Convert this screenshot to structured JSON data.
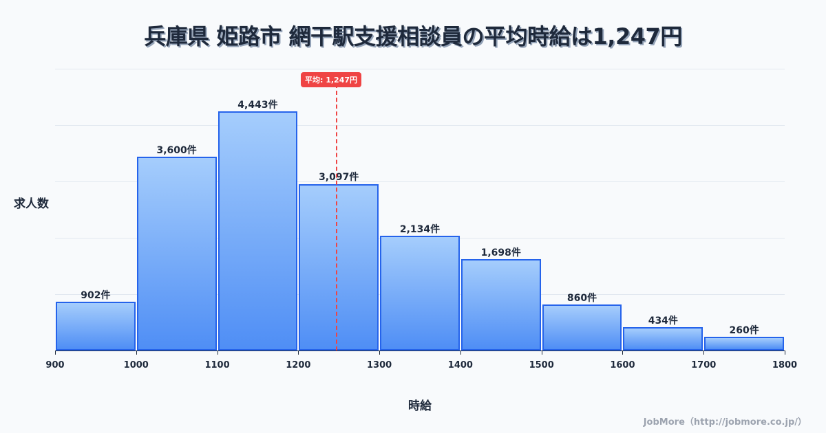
{
  "title": "兵庫県 姫路市 網干駅支援相談員の平均時給は1,247円",
  "mean_badge": "平均: 1,247円",
  "ylabel": "求人数",
  "xlabel": "時給",
  "credit": "JobMore（http://jobmore.co.jp/）",
  "colors": {
    "bar_border": "#2563eb",
    "bar_top": "#a5cdfc",
    "bar_bottom": "#4f8ef5",
    "mean_line": "#ef4444",
    "text": "#1e293b"
  },
  "chart_data": {
    "type": "bar",
    "title": "兵庫県 姫路市 網干駅支援相談員の平均時給は1,247円",
    "xlabel": "時給",
    "ylabel": "求人数",
    "bins": [
      [
        900,
        1000
      ],
      [
        1000,
        1100
      ],
      [
        1100,
        1200
      ],
      [
        1200,
        1300
      ],
      [
        1300,
        1400
      ],
      [
        1400,
        1500
      ],
      [
        1500,
        1600
      ],
      [
        1600,
        1700
      ],
      [
        1700,
        1800
      ]
    ],
    "categories": [
      "900-1000",
      "1000-1100",
      "1100-1200",
      "1200-1300",
      "1300-1400",
      "1400-1500",
      "1500-1600",
      "1600-1700",
      "1700-1800"
    ],
    "values": [
      902,
      3600,
      4443,
      3097,
      2134,
      1698,
      860,
      434,
      260
    ],
    "value_labels": [
      "902件",
      "3,600件",
      "4,443件",
      "3,097件",
      "2,134件",
      "1,698件",
      "860件",
      "434件",
      "260件"
    ],
    "x_ticks": [
      "900",
      "1000",
      "1100",
      "1200",
      "1300",
      "1400",
      "1500",
      "1600",
      "1700",
      "1800"
    ],
    "xlim": [
      900,
      1800
    ],
    "ylim": [
      0,
      5236
    ],
    "grid": true,
    "annotations": [
      {
        "type": "vline",
        "x": 1247,
        "label": "平均: 1,247円",
        "style": "dashed",
        "color": "#ef4444"
      }
    ]
  }
}
